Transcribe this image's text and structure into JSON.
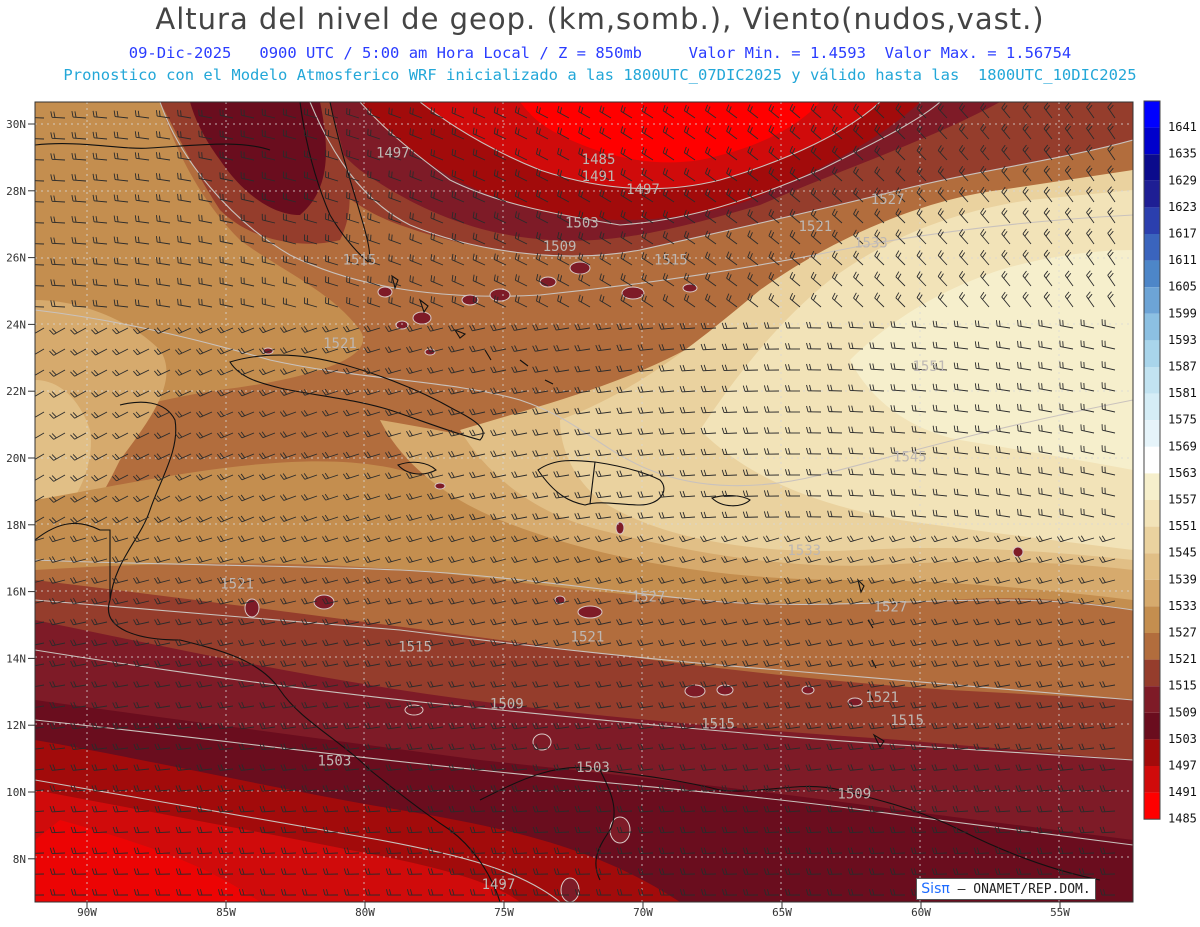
{
  "header": {
    "title": "Altura del nivel de geop. (km,somb.), Viento(nudos,vast.)",
    "subtitle_line1": "09-Dic-2025   0900 UTC / 5:00 am Hora Local / Z = 850mb     Valor Min. = 1.4593  Valor Max. = 1.56754",
    "subtitle_line2": "Pronostico con el Modelo Atmosferico WRF inicializado a las 1800UTC_07DIC2025 y válido hasta las  1800UTC_10DIC2025"
  },
  "map": {
    "lat_labels": [
      "30N",
      "28N",
      "26N",
      "24N",
      "22N",
      "20N",
      "18N",
      "16N",
      "14N",
      "12N",
      "10N",
      "8N"
    ],
    "lon_labels": [
      "90W",
      "85W",
      "80W",
      "75W",
      "70W",
      "65W",
      "60W",
      "55W"
    ],
    "contour_labels": [
      {
        "text": "1485",
        "lon": -71.6,
        "lat": 28.8
      },
      {
        "text": "1491",
        "lon": -71.6,
        "lat": 28.3
      },
      {
        "text": "1497",
        "lon": -79.0,
        "lat": 29.0
      },
      {
        "text": "1497",
        "lon": -70.0,
        "lat": 27.9
      },
      {
        "text": "1503",
        "lon": -72.2,
        "lat": 26.9
      },
      {
        "text": "1509",
        "lon": -73.0,
        "lat": 26.2
      },
      {
        "text": "1515",
        "lon": -80.2,
        "lat": 25.8
      },
      {
        "text": "1515",
        "lon": -69.0,
        "lat": 25.8
      },
      {
        "text": "1521",
        "lon": -63.8,
        "lat": 26.8
      },
      {
        "text": "1527",
        "lon": -61.2,
        "lat": 27.6
      },
      {
        "text": "1533",
        "lon": -61.8,
        "lat": 26.3
      },
      {
        "text": "1521",
        "lon": -80.9,
        "lat": 23.3
      },
      {
        "text": "1551",
        "lon": -59.7,
        "lat": 22.6
      },
      {
        "text": "1545",
        "lon": -60.4,
        "lat": 19.9
      },
      {
        "text": "1533",
        "lon": -64.2,
        "lat": 17.1
      },
      {
        "text": "1527",
        "lon": -69.8,
        "lat": 15.7
      },
      {
        "text": "1527",
        "lon": -61.1,
        "lat": 15.4
      },
      {
        "text": "1521",
        "lon": -84.6,
        "lat": 16.1
      },
      {
        "text": "1521",
        "lon": -72.0,
        "lat": 14.5
      },
      {
        "text": "1521",
        "lon": -61.4,
        "lat": 12.7
      },
      {
        "text": "1515",
        "lon": -78.2,
        "lat": 14.2
      },
      {
        "text": "1515",
        "lon": -67.3,
        "lat": 11.9
      },
      {
        "text": "1515",
        "lon": -60.5,
        "lat": 12.0
      },
      {
        "text": "1509",
        "lon": -74.9,
        "lat": 12.5
      },
      {
        "text": "1509",
        "lon": -62.4,
        "lat": 9.8
      },
      {
        "text": "1503",
        "lon": -81.1,
        "lat": 10.8
      },
      {
        "text": "1503",
        "lon": -71.8,
        "lat": 10.6
      },
      {
        "text": "1497",
        "lon": -75.2,
        "lat": 7.1
      }
    ]
  },
  "colorbar": {
    "levels": [
      "1641",
      "1635",
      "1629",
      "1623",
      "1617",
      "1611",
      "1605",
      "1599",
      "1593",
      "1587",
      "1581",
      "1575",
      "1569",
      "1563",
      "1557",
      "1551",
      "1545",
      "1539",
      "1533",
      "1527",
      "1521",
      "1515",
      "1509",
      "1503",
      "1497",
      "1491",
      "1485"
    ],
    "colors": [
      "#0000ff",
      "#0000cc",
      "#0b0b8c",
      "#1e1e94",
      "#2b3fae",
      "#3a64bd",
      "#4d86c8",
      "#6da4d6",
      "#8cc0e2",
      "#a9d5eb",
      "#c2e3f1",
      "#d5edf6",
      "#e6f4fa",
      "#ffffff",
      "#f6efcc",
      "#f2e3b8",
      "#ead29f",
      "#e1bf86",
      "#d6aa6d",
      "#c48e4f",
      "#b26d3d",
      "#953d2c",
      "#7e1b27",
      "#6a0d1e",
      "#a20b0b",
      "#d00b0b",
      "#ff0000"
    ],
    "bottom_color": "#ff0000"
  },
  "credit": {
    "brand": "Sisπ",
    "rest": "– ONAMET/REP.DOM."
  }
}
